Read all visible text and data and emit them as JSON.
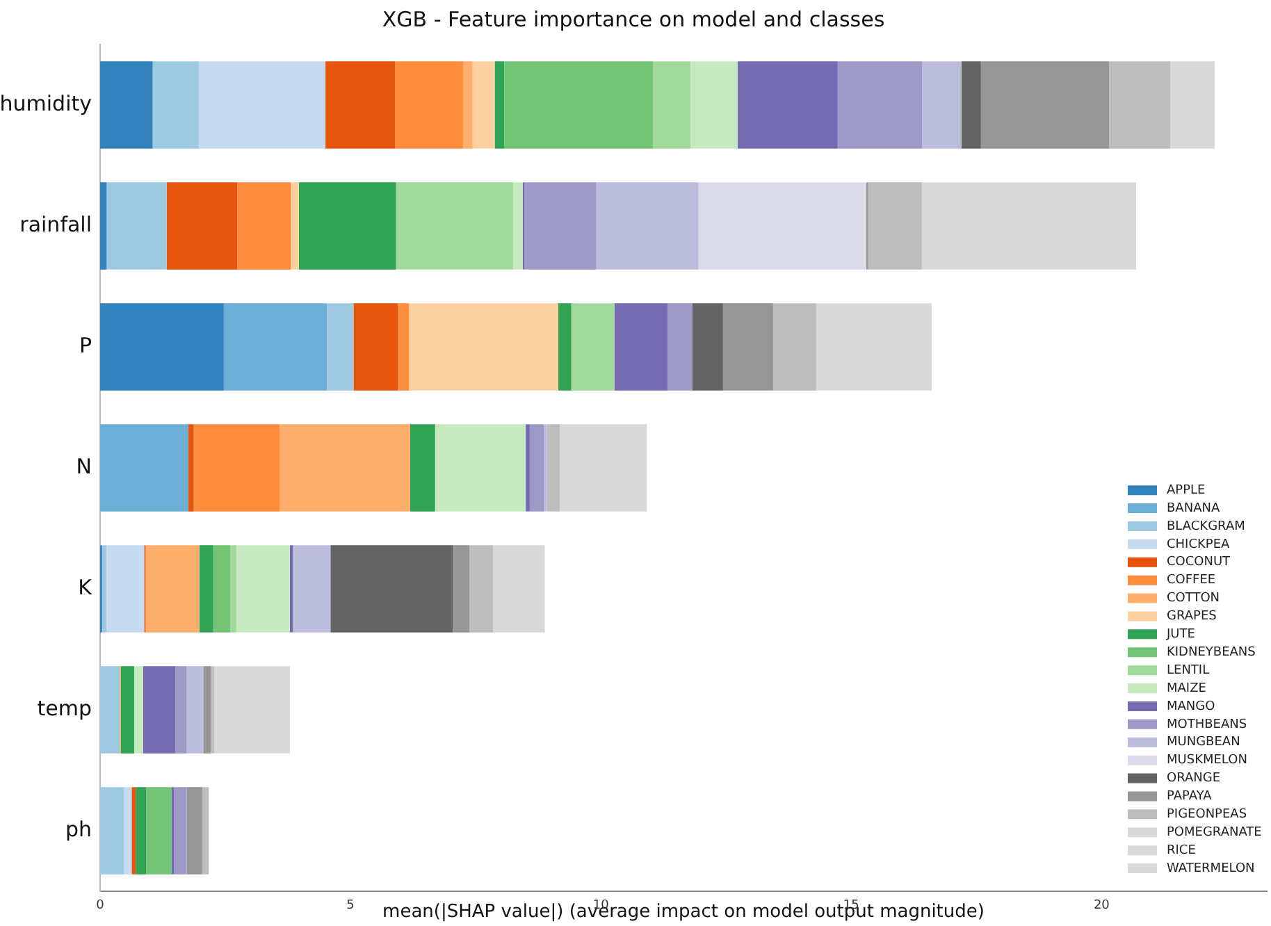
{
  "chart_data": {
    "type": "bar",
    "orientation": "horizontal",
    "stacked": true,
    "title": "XGB - Feature importance on model and classes",
    "xlabel": "mean(|SHAP value|) (average impact on model output magnitude)",
    "categories": [
      "humidity",
      "rainfall",
      "P",
      "N",
      "K",
      "temp",
      "ph"
    ],
    "xlim": [
      0,
      23.3
    ],
    "xticks": [
      0,
      5,
      10,
      15,
      20
    ],
    "grid": false,
    "legend": "bottom right",
    "series": [
      {
        "name": "APPLE",
        "color": "#3182bd",
        "values": [
          1.05,
          0.13,
          2.47,
          0,
          0.04,
          0,
          0
        ]
      },
      {
        "name": "BANANA",
        "color": "#6baed6",
        "values": [
          0,
          0,
          2.06,
          1.76,
          0,
          0,
          0
        ]
      },
      {
        "name": "BLACKGRAM",
        "color": "#9ecae1",
        "values": [
          0.92,
          1.2,
          0.53,
          0,
          0.09,
          0.39,
          0.48
        ]
      },
      {
        "name": "CHICKPEA",
        "color": "#c6dbef",
        "values": [
          2.53,
          0,
          0,
          0,
          0.75,
          0,
          0.15
        ]
      },
      {
        "name": "COCONUT",
        "color": "#e6550d",
        "values": [
          1.39,
          1.41,
          0.89,
          0.11,
          0.03,
          0,
          0.08
        ]
      },
      {
        "name": "COFFEE",
        "color": "#fd8d3c",
        "values": [
          1.36,
          1.07,
          0.22,
          1.72,
          0,
          0,
          0
        ]
      },
      {
        "name": "COTTON",
        "color": "#fdae6b",
        "values": [
          0.19,
          0,
          0,
          2.6,
          1.07,
          0.02,
          0
        ]
      },
      {
        "name": "GRAPES",
        "color": "#fdd0a2",
        "values": [
          0.44,
          0.16,
          2.98,
          0,
          0,
          0,
          0
        ]
      },
      {
        "name": "JUTE",
        "color": "#31a354",
        "values": [
          0.19,
          1.94,
          0.26,
          0.5,
          0.28,
          0.27,
          0.21
        ]
      },
      {
        "name": "KIDNEYBEANS",
        "color": "#74c476",
        "values": [
          2.97,
          0,
          0,
          0,
          0.34,
          0,
          0.51
        ]
      },
      {
        "name": "LENTIL",
        "color": "#a1d99b",
        "values": [
          0.75,
          2.34,
          0.86,
          0,
          0.12,
          0,
          0
        ]
      },
      {
        "name": "MAIZE",
        "color": "#c7e9c0",
        "values": [
          0.94,
          0.19,
          0,
          1.81,
          1.07,
          0.18,
          0
        ]
      },
      {
        "name": "MANGO",
        "color": "#756bb1",
        "values": [
          2.0,
          0.03,
          1.06,
          0.08,
          0.06,
          0.64,
          0.05
        ]
      },
      {
        "name": "MOTHBEANS",
        "color": "#9e9ac8",
        "values": [
          1.69,
          1.44,
          0.5,
          0.28,
          0,
          0.23,
          0.25
        ]
      },
      {
        "name": "MUNGBEAN",
        "color": "#bcbddc",
        "values": [
          0.78,
          2.04,
          0,
          0.06,
          0.75,
          0.33,
          0
        ]
      },
      {
        "name": "MUSKMELON",
        "color": "#dadaeb",
        "values": [
          0,
          3.35,
          0,
          0,
          0,
          0,
          0
        ]
      },
      {
        "name": "ORANGE",
        "color": "#636363",
        "values": [
          0.39,
          0,
          0.61,
          0,
          2.44,
          0,
          0
        ]
      },
      {
        "name": "PAPAYA",
        "color": "#969696",
        "values": [
          2.56,
          0.04,
          1.0,
          0,
          0.34,
          0.15,
          0.31
        ]
      },
      {
        "name": "PIGEONPEAS",
        "color": "#bdbdbd",
        "values": [
          1.22,
          1.07,
          0.86,
          0.26,
          0.47,
          0.07,
          0.13
        ]
      },
      {
        "name": "POMEGRANATE",
        "color": "#d9d9d9",
        "values": [
          0,
          0,
          0,
          0,
          0,
          0,
          0
        ]
      },
      {
        "name": "RICE",
        "color": "#d9d9d9",
        "values": [
          0.89,
          4.28,
          2.31,
          1.74,
          1.03,
          1.51,
          0
        ]
      },
      {
        "name": "WATERMELON",
        "color": "#d9d9d9",
        "values": [
          0,
          0,
          0,
          0,
          0,
          0,
          0
        ]
      }
    ]
  }
}
